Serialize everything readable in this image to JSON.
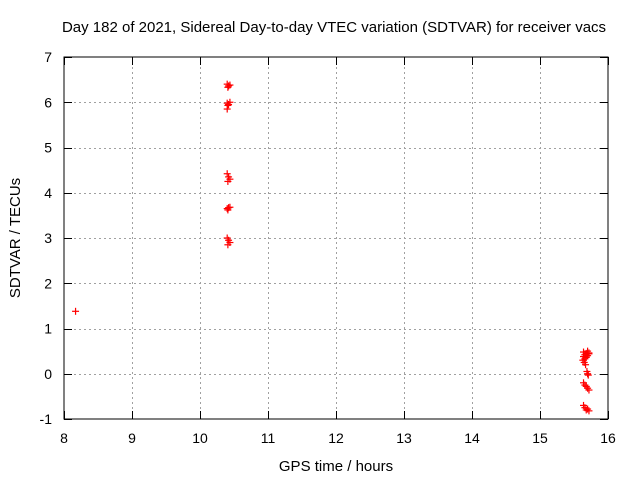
{
  "chart_data": {
    "type": "scatter",
    "title": "Day 182 of 2021, Sidereal Day-to-day VTEC variation (SDTVAR) for receiver vacs",
    "xlabel": "GPS time / hours",
    "ylabel": "SDTVAR / TECUs",
    "xlim": [
      8,
      16
    ],
    "ylim": [
      -1,
      7
    ],
    "xticks": [
      8,
      9,
      10,
      11,
      12,
      13,
      14,
      15,
      16
    ],
    "yticks": [
      -1,
      0,
      1,
      2,
      3,
      4,
      5,
      6,
      7
    ],
    "grid": true,
    "marker": "+",
    "series": [
      {
        "color": "#ff0000",
        "points": [
          [
            8.17,
            1.38
          ],
          [
            10.4,
            6.4
          ],
          [
            10.42,
            6.36
          ],
          [
            10.44,
            6.38
          ],
          [
            10.41,
            6.33
          ],
          [
            10.4,
            5.98
          ],
          [
            10.42,
            5.95
          ],
          [
            10.44,
            6.0
          ],
          [
            10.41,
            5.93
          ],
          [
            10.4,
            5.85
          ],
          [
            10.4,
            4.42
          ],
          [
            10.42,
            4.35
          ],
          [
            10.44,
            4.3
          ],
          [
            10.41,
            4.25
          ],
          [
            10.4,
            3.65
          ],
          [
            10.42,
            3.67
          ],
          [
            10.44,
            3.68
          ],
          [
            10.41,
            3.62
          ],
          [
            10.4,
            3.0
          ],
          [
            10.42,
            2.95
          ],
          [
            10.44,
            2.9
          ],
          [
            10.41,
            2.85
          ],
          [
            15.64,
            0.48
          ],
          [
            15.66,
            0.42
          ],
          [
            15.68,
            0.45
          ],
          [
            15.7,
            0.5
          ],
          [
            15.72,
            0.46
          ],
          [
            15.64,
            0.38
          ],
          [
            15.66,
            0.33
          ],
          [
            15.68,
            0.36
          ],
          [
            15.7,
            0.4
          ],
          [
            15.72,
            0.44
          ],
          [
            15.63,
            0.3
          ],
          [
            15.65,
            0.25
          ],
          [
            15.67,
            0.2
          ],
          [
            15.69,
            0.05
          ],
          [
            15.7,
            0.0
          ],
          [
            15.71,
            -0.03
          ],
          [
            15.64,
            -0.2
          ],
          [
            15.66,
            -0.25
          ],
          [
            15.68,
            -0.28
          ],
          [
            15.7,
            -0.32
          ],
          [
            15.72,
            -0.36
          ],
          [
            15.64,
            -0.7
          ],
          [
            15.66,
            -0.75
          ],
          [
            15.68,
            -0.8
          ],
          [
            15.7,
            -0.78
          ],
          [
            15.72,
            -0.82
          ]
        ]
      }
    ]
  }
}
